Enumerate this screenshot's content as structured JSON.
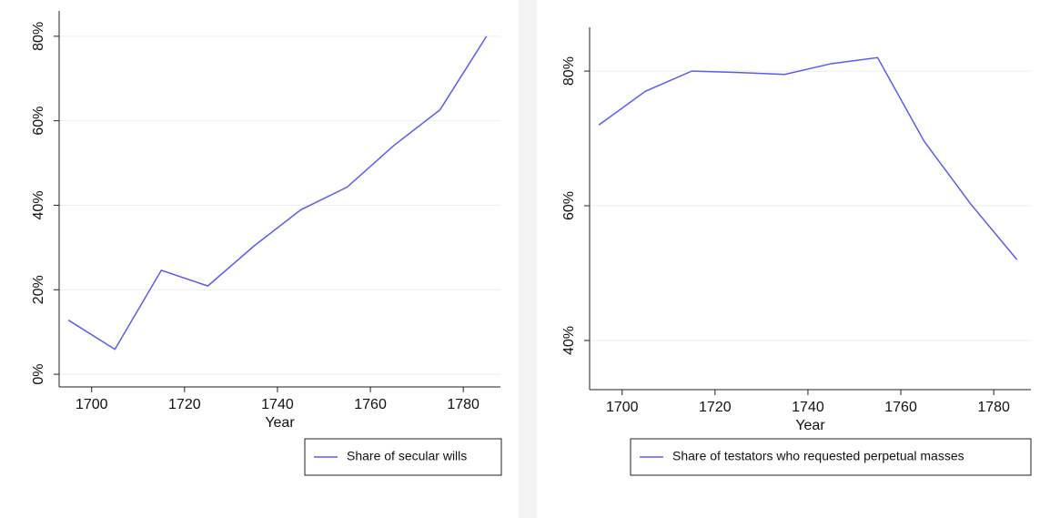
{
  "chart_data": [
    {
      "type": "line",
      "x_label": "Year",
      "x": [
        1695,
        1705,
        1715,
        1725,
        1735,
        1745,
        1755,
        1765,
        1775,
        1785
      ],
      "series": [
        {
          "name": "Share of secular wills",
          "color": "#5b5bf0",
          "values": [
            12.8,
            5.9,
            24.6,
            20.9,
            30.4,
            38.9,
            44.3,
            54.1,
            62.6,
            80
          ]
        }
      ],
      "xlim": [
        1693,
        1788
      ],
      "xticks": [
        1700,
        1720,
        1740,
        1760,
        1780
      ],
      "ylim": [
        -3,
        86
      ],
      "yticks": [
        {
          "value": 0,
          "label": "0%"
        },
        {
          "value": 20,
          "label": "20%"
        },
        {
          "value": 40,
          "label": "40%"
        },
        {
          "value": 60,
          "label": "60%"
        },
        {
          "value": 80,
          "label": "80%"
        }
      ],
      "grid": true,
      "legend": "bottom-right"
    },
    {
      "type": "line",
      "x_label": "Year",
      "x": [
        1695,
        1705,
        1715,
        1725,
        1735,
        1745,
        1755,
        1765,
        1775,
        1785
      ],
      "series": [
        {
          "name": "Share of testators who requested perpetual masses",
          "color": "#5b5bf0",
          "values": [
            72.0,
            77.0,
            80.0,
            79.8,
            79.5,
            81.1,
            82.0,
            69.6,
            60.3,
            52.0
          ]
        }
      ],
      "xlim": [
        1693,
        1788
      ],
      "xticks": [
        1700,
        1720,
        1740,
        1760,
        1780
      ],
      "ylim": [
        32.7,
        86.5
      ],
      "yticks": [
        {
          "value": 40,
          "label": "40%"
        },
        {
          "value": 60,
          "label": "60%"
        },
        {
          "value": 80,
          "label": "80%"
        }
      ],
      "grid": true,
      "legend": "bottom-right"
    }
  ]
}
